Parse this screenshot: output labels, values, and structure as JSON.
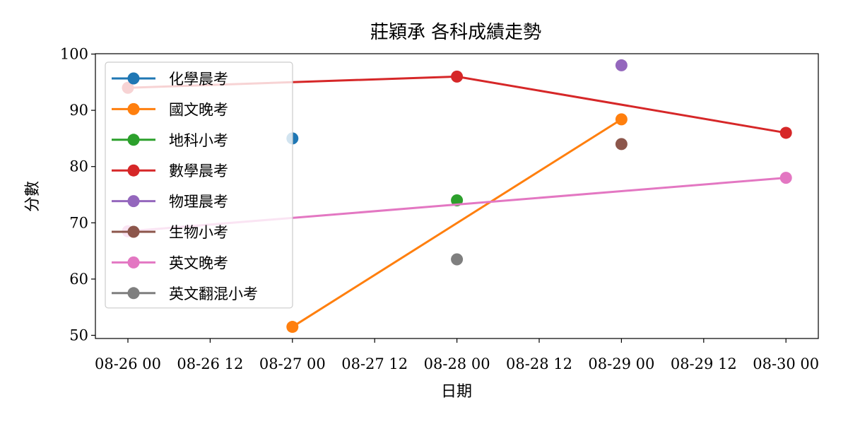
{
  "chart_data": {
    "type": "line",
    "title": "莊穎承 各科成績走勢",
    "xlabel": "日期",
    "ylabel": "分數",
    "ylim": [
      50,
      100
    ],
    "y_ticks": [
      50,
      60,
      70,
      80,
      90,
      100
    ],
    "x_ticks": [
      "08-26 00",
      "08-26 12",
      "08-27 00",
      "08-27 12",
      "08-28 00",
      "08-28 12",
      "08-29 00",
      "08-29 12",
      "08-30 00"
    ],
    "x_dates": [
      "08-26",
      "08-27",
      "08-28",
      "08-29",
      "08-30"
    ],
    "grid": false,
    "legend_position": "upper-left",
    "series": [
      {
        "name": "化學晨考",
        "color": "#1f77b4",
        "points": [
          {
            "x": "08-27",
            "y": 85
          }
        ]
      },
      {
        "name": "國文晚考",
        "color": "#ff7f0e",
        "points": [
          {
            "x": "08-27",
            "y": 51.5
          },
          {
            "x": "08-29",
            "y": 88.4
          }
        ]
      },
      {
        "name": "地科小考",
        "color": "#2ca02c",
        "points": [
          {
            "x": "08-28",
            "y": 74
          }
        ]
      },
      {
        "name": "數學晨考",
        "color": "#d62728",
        "points": [
          {
            "x": "08-26",
            "y": 94
          },
          {
            "x": "08-28",
            "y": 96
          },
          {
            "x": "08-30",
            "y": 86
          }
        ]
      },
      {
        "name": "物理晨考",
        "color": "#9467bd",
        "points": [
          {
            "x": "08-29",
            "y": 98
          }
        ]
      },
      {
        "name": "生物小考",
        "color": "#8c564b",
        "points": [
          {
            "x": "08-29",
            "y": 84
          }
        ]
      },
      {
        "name": "英文晚考",
        "color": "#e377c2",
        "points": [
          {
            "x": "08-26",
            "y": 68.5
          },
          {
            "x": "08-30",
            "y": 78
          }
        ]
      },
      {
        "name": "英文翻混小考",
        "color": "#7f7f7f",
        "points": [
          {
            "x": "08-28",
            "y": 63.5
          }
        ]
      }
    ]
  }
}
